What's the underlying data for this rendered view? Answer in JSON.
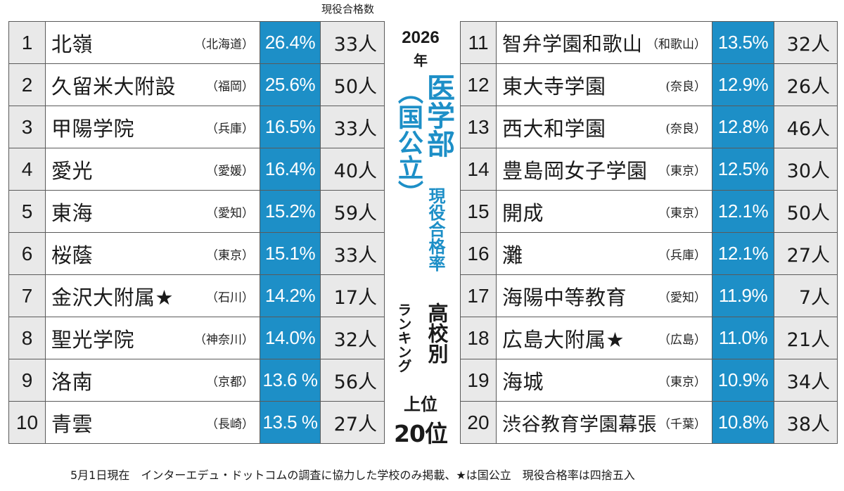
{
  "col_header": "現役合格数",
  "title": {
    "year": "2026",
    "year_unit": "年",
    "subject": "医学部",
    "category": "（国公立）",
    "rate_label": "現役合格率",
    "school_label": "高校別",
    "ranking_label": "ランキング",
    "top_label": "上位",
    "top_count": "20位"
  },
  "left": [
    {
      "rank": "1",
      "school": "北嶺",
      "pref": "（北海道）",
      "rate": "26.4%",
      "count": "33人"
    },
    {
      "rank": "2",
      "school": "久留米大附設",
      "pref": "（福岡）",
      "rate": "25.6%",
      "count": "50人"
    },
    {
      "rank": "3",
      "school": "甲陽学院",
      "pref": "（兵庫）",
      "rate": "16.5%",
      "count": "33人"
    },
    {
      "rank": "4",
      "school": "愛光",
      "pref": "（愛媛）",
      "rate": "16.4%",
      "count": "40人"
    },
    {
      "rank": "5",
      "school": "東海",
      "pref": "（愛知）",
      "rate": "15.2%",
      "count": "59人"
    },
    {
      "rank": "6",
      "school": "桜蔭",
      "pref": "（東京）",
      "rate": "15.1%",
      "count": "33人"
    },
    {
      "rank": "7",
      "school": "金沢大附属★",
      "pref": "（石川）",
      "rate": "14.2%",
      "count": "17人"
    },
    {
      "rank": "8",
      "school": "聖光学院",
      "pref": "（神奈川）",
      "rate": "14.0%",
      "count": "32人"
    },
    {
      "rank": "9",
      "school": "洛南",
      "pref": "（京都）",
      "rate": "13.6 %",
      "count": "56人"
    },
    {
      "rank": "10",
      "school": "青雲",
      "pref": "（長崎）",
      "rate": "13.5 %",
      "count": "27人"
    }
  ],
  "right": [
    {
      "rank": "11",
      "school": "智弁学園和歌山",
      "pref": "（和歌山）",
      "rate": "13.5%",
      "count": "32人"
    },
    {
      "rank": "12",
      "school": "東大寺学園",
      "pref": "(奈良）",
      "rate": "12.9%",
      "count": "26人"
    },
    {
      "rank": "13",
      "school": "西大和学園",
      "pref": "(奈良）",
      "rate": "12.8%",
      "count": "46人"
    },
    {
      "rank": "14",
      "school": "豊島岡女子学園",
      "pref": "（東京）",
      "rate": "12.5%",
      "count": "30人"
    },
    {
      "rank": "15",
      "school": "開成",
      "pref": "（東京）",
      "rate": "12.1%",
      "count": "50人"
    },
    {
      "rank": "16",
      "school": "灘",
      "pref": "（兵庫）",
      "rate": "12.1%",
      "count": "27人"
    },
    {
      "rank": "17",
      "school": "海陽中等教育",
      "pref": "（愛知）",
      "rate": "11.9%",
      "count": "7人"
    },
    {
      "rank": "18",
      "school": "広島大附属★",
      "pref": "（広島）",
      "rate": "11.0%",
      "count": "21人"
    },
    {
      "rank": "19",
      "school": "海城",
      "pref": "（東京）",
      "rate": "10.9%",
      "count": "34人"
    },
    {
      "rank": "20",
      "school": "渋谷教育学園幕張",
      "pref": "（千葉）",
      "rate": "10.8%",
      "count": "38人"
    }
  ],
  "footnote": "5月1日現在　インターエデュ・ドットコムの調査に協力した学校のみ掲載、★は国公立　現役合格率は四捨五入",
  "colors": {
    "accent": "#1d8fc7",
    "cell_gray": "#e9e9e9",
    "border": "#5a5a5a"
  }
}
